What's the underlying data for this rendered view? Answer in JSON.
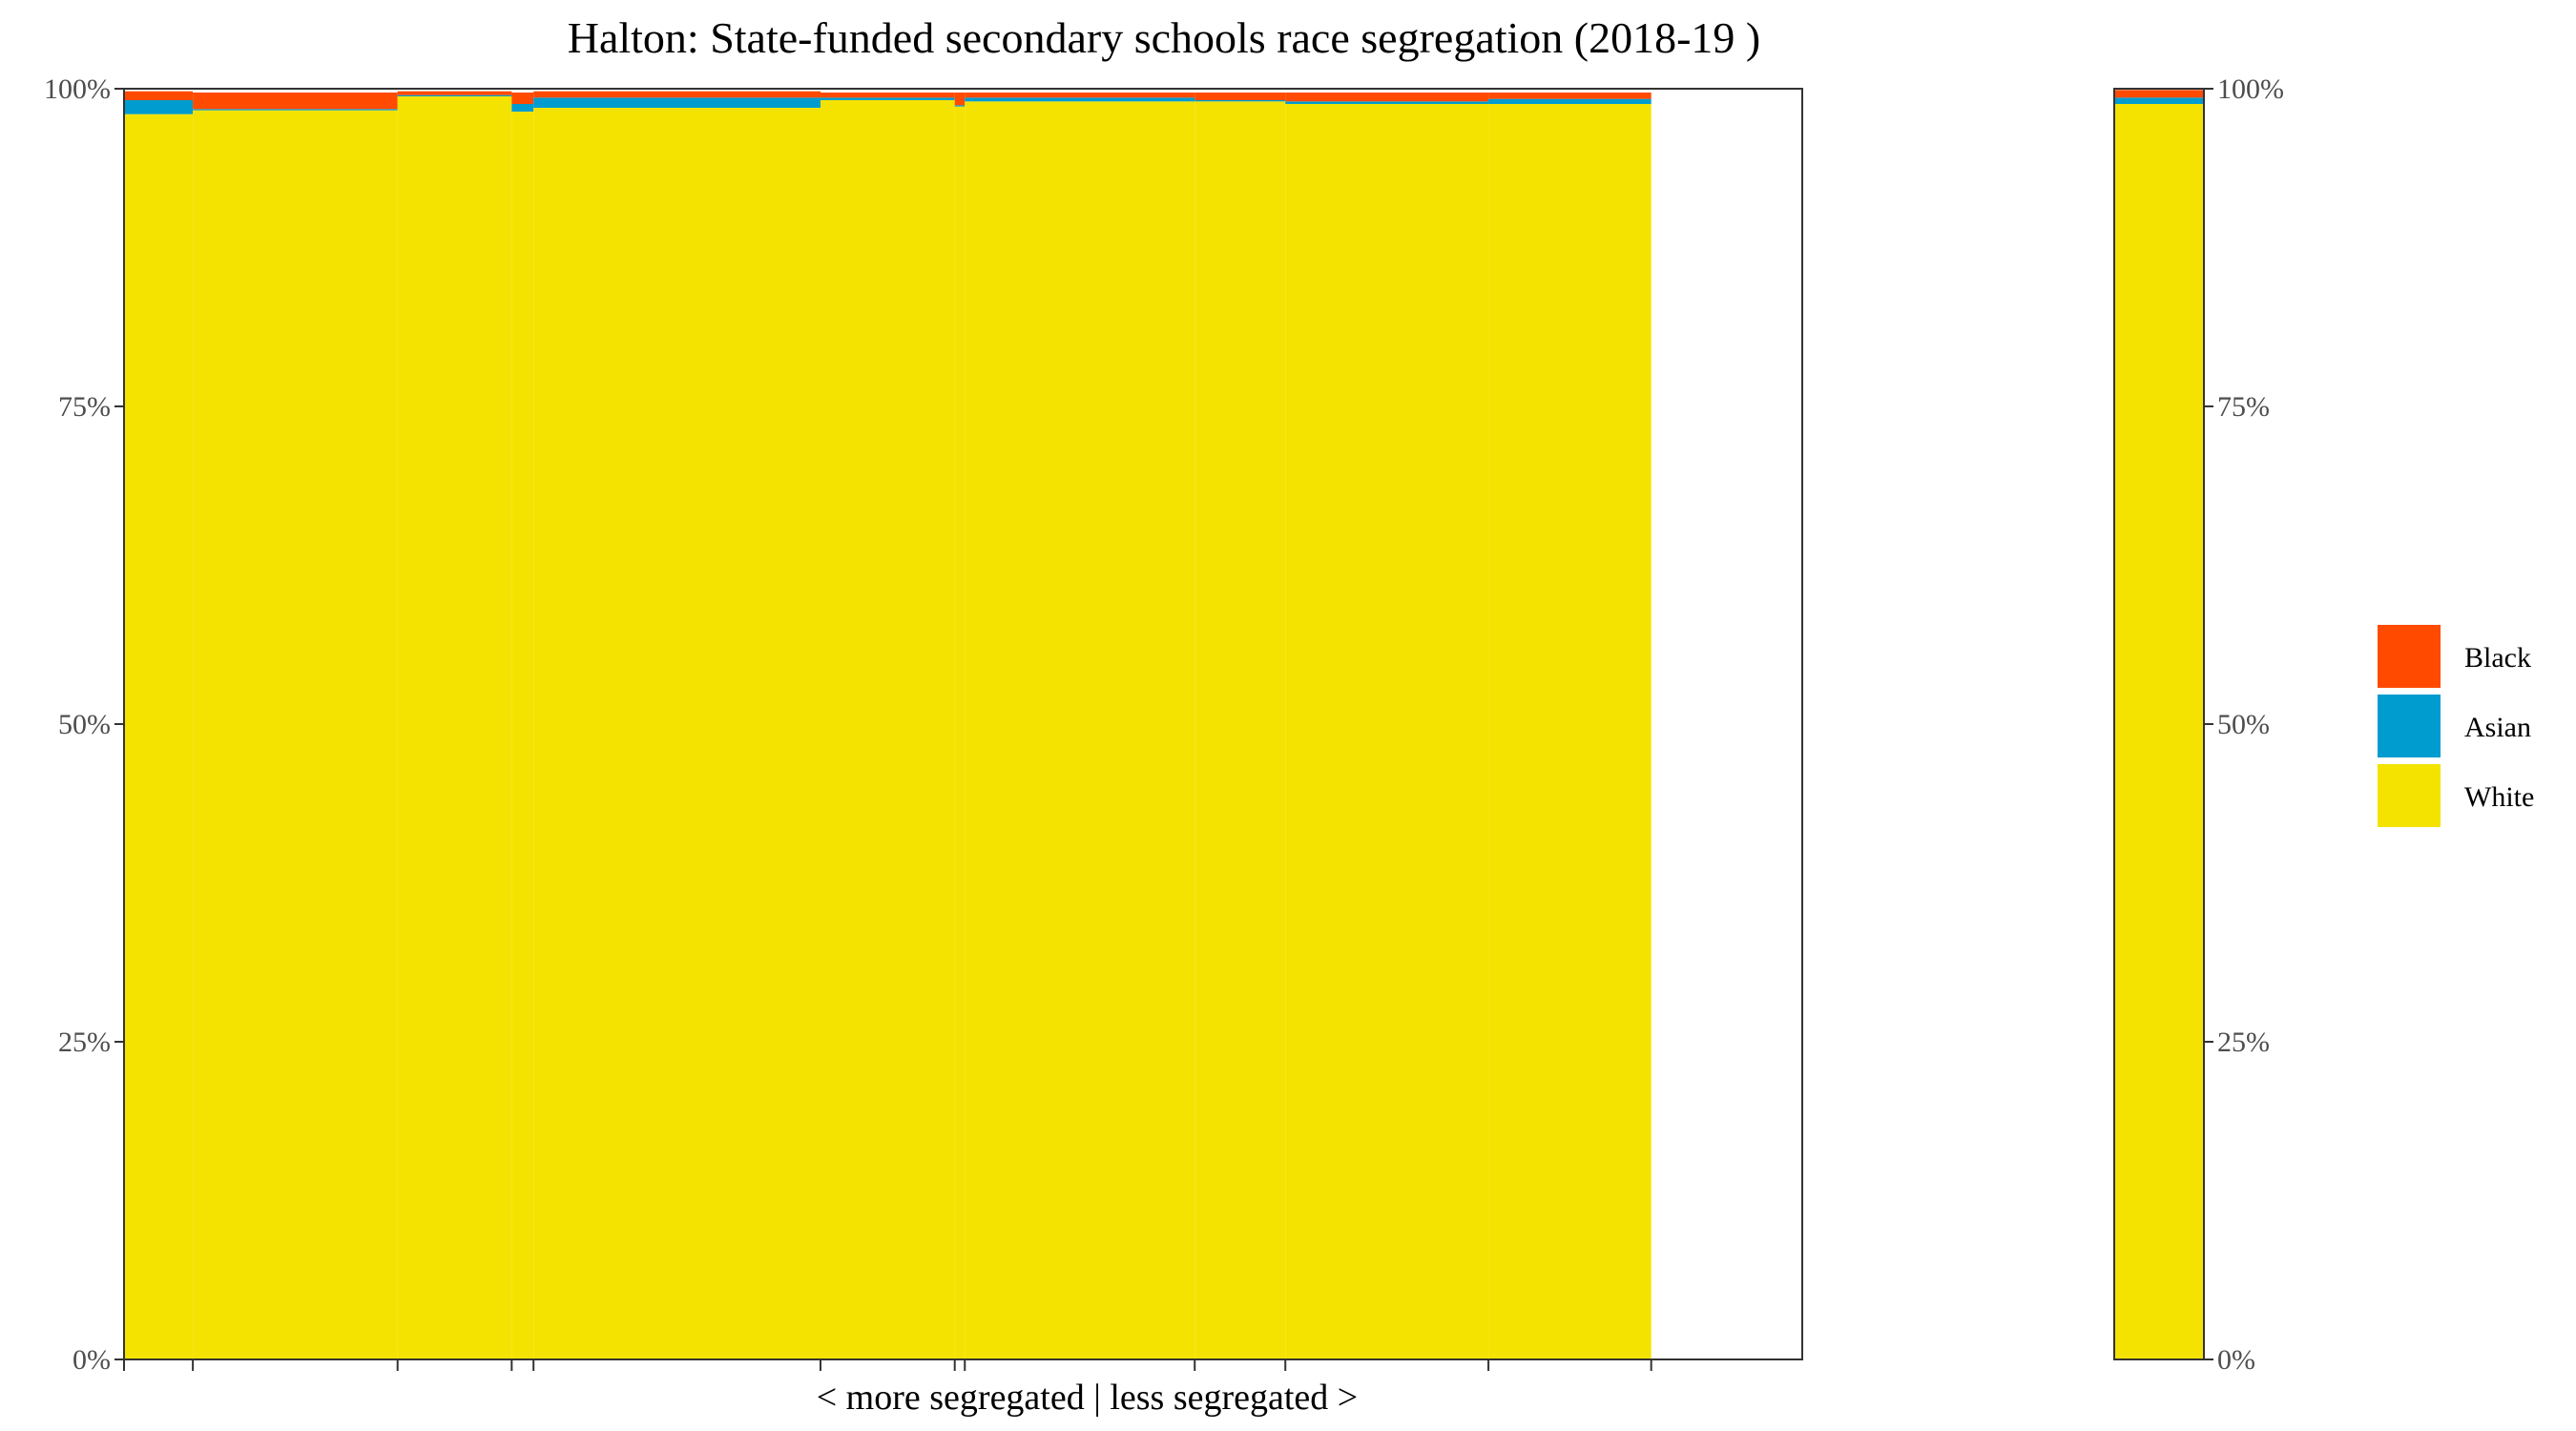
{
  "chart_data": {
    "type": "bar",
    "subtype": "stacked-variable-width (mosaic)",
    "title": "Halton: State-funded secondary schools race segregation (2018-19 )",
    "xlabel": "< more segregated | less segregated >",
    "ylabel": "",
    "ylim": [
      0,
      100
    ],
    "y_ticks": [
      "0%",
      "25%",
      "50%",
      "75%",
      "100%"
    ],
    "y_tick_values": [
      0,
      25,
      50,
      75,
      100
    ],
    "secondary_y_axis": true,
    "grid": false,
    "legend_position": "right",
    "colors": {
      "Black": "#ff4a00",
      "Asian": "#009ccf",
      "White": "#f4e300"
    },
    "legend": [
      {
        "name": "Black",
        "color": "#ff4a00"
      },
      {
        "name": "Asian",
        "color": "#009ccf"
      },
      {
        "name": "White",
        "color": "#f4e300"
      }
    ],
    "x_extent": [
      0,
      100
    ],
    "schools": [
      {
        "x_start": 0.0,
        "x_end": 4.1,
        "White": 98.0,
        "Asian": 1.1,
        "Black": 0.7
      },
      {
        "x_start": 4.1,
        "x_end": 16.3,
        "White": 98.3,
        "Asian": 0.1,
        "Black": 1.3
      },
      {
        "x_start": 16.3,
        "x_end": 23.1,
        "White": 99.4,
        "Asian": 0.1,
        "Black": 0.3
      },
      {
        "x_start": 23.1,
        "x_end": 24.4,
        "White": 98.2,
        "Asian": 0.6,
        "Black": 0.9
      },
      {
        "x_start": 24.4,
        "x_end": 41.5,
        "White": 98.5,
        "Asian": 0.8,
        "Black": 0.5
      },
      {
        "x_start": 41.5,
        "x_end": 49.5,
        "White": 99.1,
        "Asian": 0.2,
        "Black": 0.4
      },
      {
        "x_start": 49.5,
        "x_end": 50.1,
        "White": 98.6,
        "Asian": 0.1,
        "Black": 1.0
      },
      {
        "x_start": 50.1,
        "x_end": 63.8,
        "White": 99.0,
        "Asian": 0.3,
        "Black": 0.4
      },
      {
        "x_start": 63.8,
        "x_end": 69.2,
        "White": 99.0,
        "Asian": 0.1,
        "Black": 0.6
      },
      {
        "x_start": 69.2,
        "x_end": 81.3,
        "White": 98.8,
        "Asian": 0.2,
        "Black": 0.7
      },
      {
        "x_start": 81.3,
        "x_end": 91.0,
        "White": 98.8,
        "Asian": 0.4,
        "Black": 0.5
      }
    ],
    "overall": {
      "White": 98.8,
      "Asian": 0.5,
      "Black": 0.6
    }
  }
}
